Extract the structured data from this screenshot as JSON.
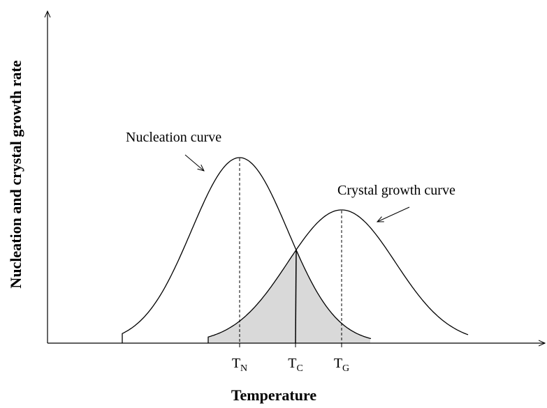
{
  "axes": {
    "y_label": "Nucleation and crystal growth rate",
    "x_label": "Temperature"
  },
  "curves": [
    {
      "label": "Nucleation curve"
    },
    {
      "label": "Crystal growth curve"
    }
  ],
  "markers": [
    {
      "symbol": "T",
      "subscript": "N"
    },
    {
      "symbol": "T",
      "subscript": "C"
    },
    {
      "symbol": "T",
      "subscript": "G"
    }
  ]
}
